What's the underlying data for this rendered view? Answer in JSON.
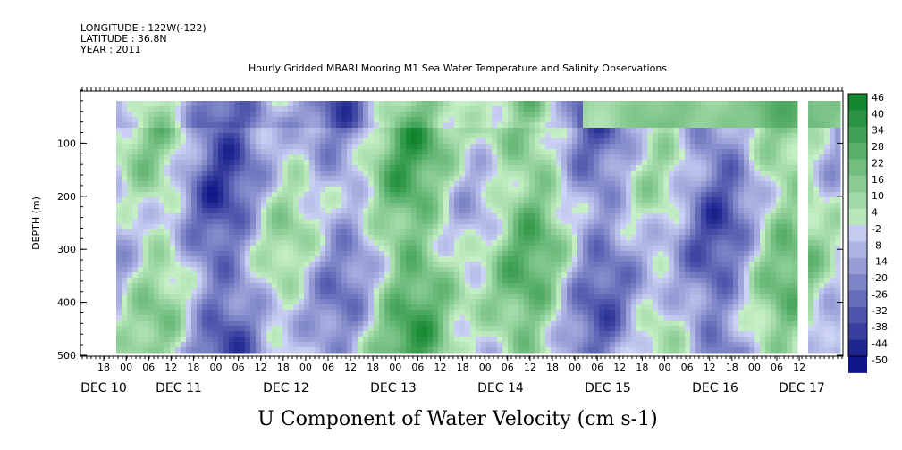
{
  "header": {
    "longitude": "LONGITUDE : 122W(-122)",
    "latitude": "LATITUDE : 36.8N",
    "year": "YEAR : 2011",
    "title": "Hourly Gridded MBARI Mooring M1 Sea Water Temperature and Salinity Observations"
  },
  "chart_data": {
    "type": "heatmap",
    "title": "U Component of Water Velocity (cm s-1)",
    "ylabel": "DEPTH (m)",
    "xlabel": "",
    "ylim": [
      500,
      0
    ],
    "y_ticks": [
      100,
      200,
      300,
      400,
      500
    ],
    "x_hour_ticks": [
      "18",
      "00",
      "06",
      "12",
      "18",
      "00",
      "06",
      "12",
      "18",
      "00",
      "06",
      "12",
      "18",
      "00",
      "06",
      "12",
      "18",
      "00",
      "06",
      "12",
      "18",
      "00",
      "06",
      "12",
      "18",
      "00",
      "06",
      "12",
      "18",
      "00",
      "06",
      "12"
    ],
    "x_day_labels": [
      "DEC 10",
      "DEC 11",
      "DEC 12",
      "DEC 13",
      "DEC 14",
      "DEC 15",
      "DEC 16",
      "DEC 17"
    ],
    "colorbar_levels": [
      "46",
      "40",
      "34",
      "28",
      "22",
      "16",
      "10",
      "4",
      "-2",
      "-8",
      "-14",
      "-20",
      "-26",
      "-32",
      "-38",
      "-44",
      "-50"
    ],
    "data_start": "DEC 10 21:00",
    "data_end": "DEC 17 12:00",
    "missing_column": "DEC 17 05:00"
  },
  "colors": {
    "strong_negative": "#0b1a8c",
    "negative": "#8f9cea",
    "near_zero": "#cfd4f4",
    "positive": "#7ee37e",
    "strong_positive": "#0b8a2e"
  }
}
